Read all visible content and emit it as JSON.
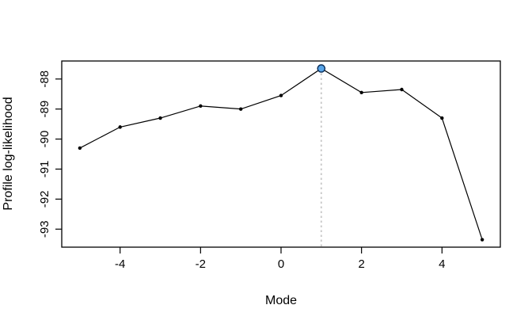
{
  "chart_data": {
    "type": "line",
    "x": [
      -5,
      -4,
      -3,
      -2,
      -1,
      0,
      1,
      2,
      3,
      4,
      5
    ],
    "values": [
      -90.3,
      -89.6,
      -89.3,
      -88.9,
      -89.0,
      -88.55,
      -87.65,
      -88.45,
      -88.35,
      -89.3,
      -93.35
    ],
    "title": "",
    "xlabel": "Mode",
    "ylabel": "Profile log-likelihood",
    "xticks": [
      -4,
      -2,
      0,
      2,
      4
    ],
    "yticks": [
      -88,
      -89,
      -90,
      -91,
      -92,
      -93
    ],
    "xlim": [
      -5.45,
      5.45
    ],
    "ylim": [
      -93.6,
      -87.4
    ],
    "grid": false,
    "legend": null,
    "line_color": "#000000",
    "marker_color": "#000000",
    "box_color": "#000000",
    "highlight_point": {
      "x": 1,
      "value": -87.65,
      "fill": "#58a5e8",
      "stroke": "#0b2e59"
    },
    "vline": {
      "x": 1,
      "color": "#cccccc",
      "style": "dotted"
    }
  }
}
